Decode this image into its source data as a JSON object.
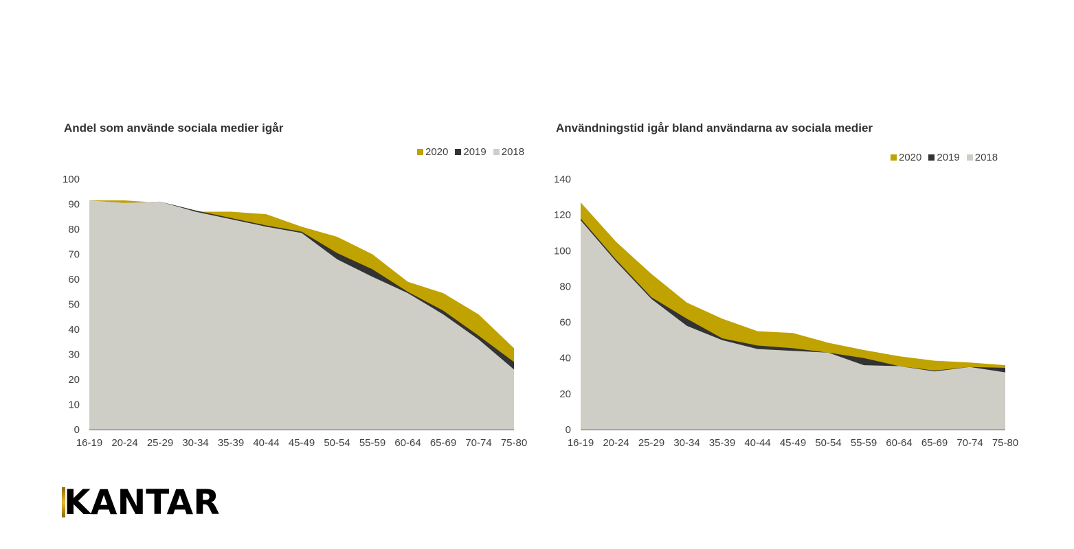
{
  "colors": {
    "2020": "#c0a200",
    "2019": "#333333",
    "2018": "#cfcec6",
    "axis": "#595959"
  },
  "logo": {
    "text": "KANTAR"
  },
  "chart_data": [
    {
      "type": "area",
      "title": "Andel som använde sociala medier igår",
      "xlabel": "",
      "ylabel": "",
      "ylim": [
        0,
        100
      ],
      "yticks": [
        0,
        10,
        20,
        30,
        40,
        50,
        60,
        70,
        80,
        90,
        100
      ],
      "grid": false,
      "legend_position": "top-right",
      "legend": [
        "2020",
        "2019",
        "2018"
      ],
      "categories": [
        "16-19",
        "20-24",
        "25-29",
        "30-34",
        "35-39",
        "40-44",
        "45-49",
        "50-54",
        "55-59",
        "60-64",
        "65-69",
        "70-74",
        "75-80"
      ],
      "series": [
        {
          "name": "2020",
          "values": [
            91.5,
            91.5,
            90.5,
            87,
            87,
            86,
            81,
            77,
            70,
            59,
            54.5,
            46,
            32.5
          ]
        },
        {
          "name": "2019",
          "values": [
            91.5,
            90.5,
            91,
            87.5,
            84.5,
            81.5,
            79,
            70.5,
            64,
            55,
            47.5,
            37.5,
            27
          ]
        },
        {
          "name": "2018",
          "values": [
            91.5,
            90.5,
            91,
            87,
            84,
            81,
            78.5,
            68,
            61,
            54.5,
            46,
            36,
            24
          ]
        }
      ]
    },
    {
      "type": "area",
      "title": "Användningstid igår bland användarna av sociala medier",
      "xlabel": "",
      "ylabel": "",
      "ylim": [
        0,
        140
      ],
      "yticks": [
        0,
        20,
        40,
        60,
        80,
        100,
        120,
        140
      ],
      "grid": false,
      "legend_position": "top-right",
      "legend": [
        "2020",
        "2019",
        "2018"
      ],
      "categories": [
        "16-19",
        "20-24",
        "25-29",
        "30-34",
        "35-39",
        "40-44",
        "45-49",
        "50-54",
        "55-59",
        "60-64",
        "65-69",
        "70-74",
        "75-80"
      ],
      "series": [
        {
          "name": "2020",
          "values": [
            127,
            105,
            87,
            71,
            62,
            55,
            54,
            48.5,
            44.5,
            41,
            38.5,
            37.5,
            36
          ]
        },
        {
          "name": "2019",
          "values": [
            118,
            95,
            74,
            62,
            51,
            47,
            45.5,
            43,
            40,
            35.5,
            33,
            35,
            34.5
          ]
        },
        {
          "name": "2018",
          "values": [
            117,
            94,
            73,
            58,
            50,
            45,
            44,
            43,
            36,
            35.5,
            32.5,
            35,
            32
          ]
        }
      ]
    }
  ]
}
